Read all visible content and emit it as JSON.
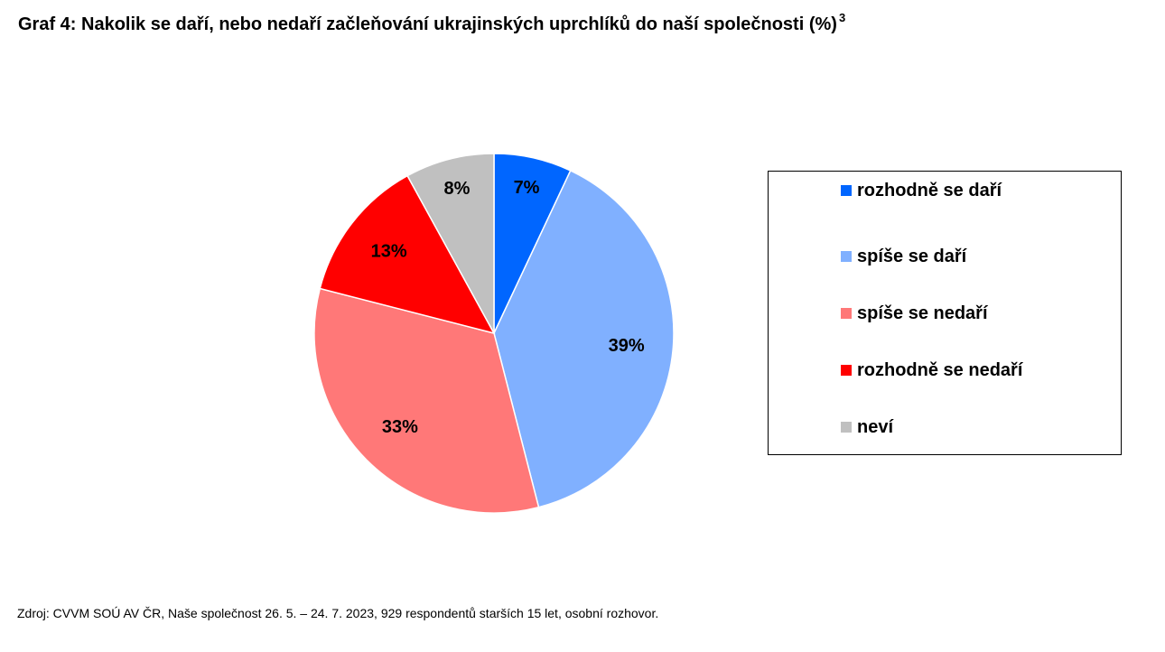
{
  "header": {
    "title": "Graf 4: Nakolik se daří, nebo nedaří začleňování ukrajinských uprchlíků do naší společnosti (%)",
    "footnote_mark": "3"
  },
  "footer": {
    "source": "Zdroj: CVVM SOÚ AV ČR, Naše společnost 26. 5. – 24. 7. 2023, 929 respondentů starších 15 let, osobní rozhovor."
  },
  "chart_data": {
    "type": "pie",
    "title": "Graf 4: Nakolik se daří, nebo nedaří začleňování ukrajinských uprchlíků do naší společnosti (%)",
    "unit": "%",
    "legend_position": "right",
    "categories": [
      "rozhodně se daří",
      "spíše se daří",
      "spíše se nedaří",
      "rozhodně se nedaří",
      "neví"
    ],
    "values": [
      7,
      39,
      33,
      13,
      8
    ],
    "labels": [
      "7%",
      "39%",
      "33%",
      "13%",
      "8%"
    ],
    "colors": [
      "#0066ff",
      "#80b0ff",
      "#ff7878",
      "#ff0000",
      "#c0c0c0"
    ]
  }
}
